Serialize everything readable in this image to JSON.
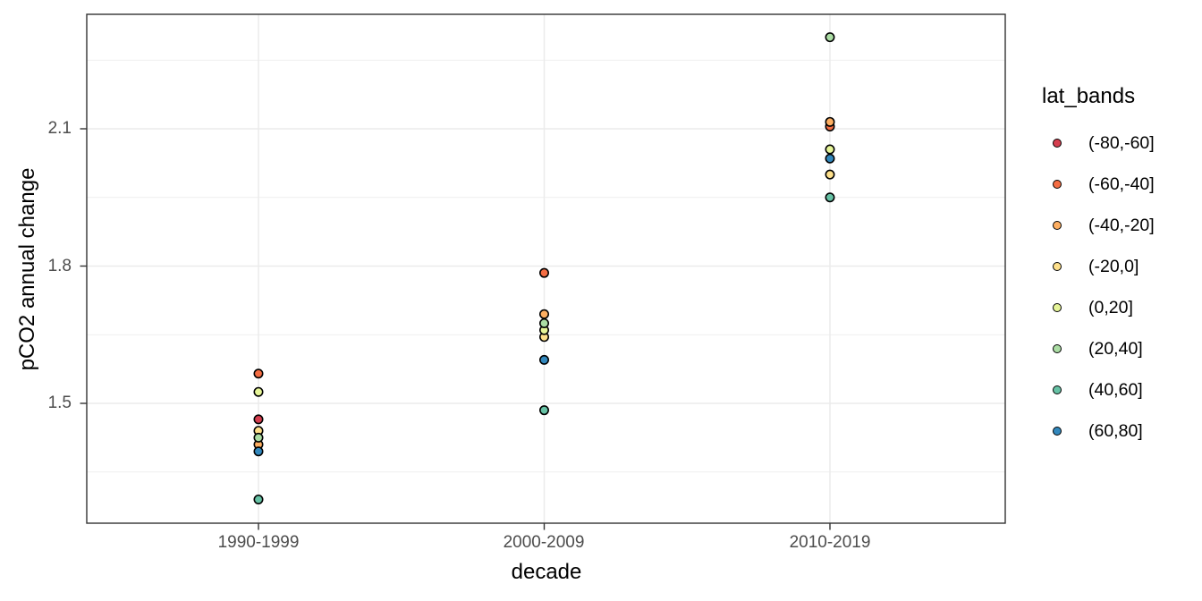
{
  "chart_data": {
    "type": "scatter",
    "title": "",
    "xlabel": "decade",
    "ylabel": "pCO2 annual change",
    "x_categories": [
      "1990-1999",
      "2000-2009",
      "2010-2019"
    ],
    "y_tick_labels": [
      "2.1",
      "1.8",
      "1.5"
    ],
    "y_major": [
      2.1,
      1.8,
      1.5
    ],
    "y_minor": [
      2.25,
      1.95,
      1.65,
      1.35
    ],
    "ylim": [
      1.236,
      2.35
    ],
    "grid": true,
    "grid_color": "#ebebeb",
    "panel_border_color": "#333333",
    "tick_label_color": "#4d4d4d",
    "point_stroke_color": "#000000",
    "legend_title": "lat_bands",
    "legend_position": "right",
    "series": [
      {
        "name": "(-80,-60]",
        "color": "#D53E4F",
        "values": [
          1.465,
          null,
          null
        ]
      },
      {
        "name": "(-60,-40]",
        "color": "#F46D43",
        "values": [
          1.565,
          1.785,
          2.105
        ]
      },
      {
        "name": "(-40,-20]",
        "color": "#FDAE61",
        "values": [
          1.41,
          1.695,
          2.115
        ]
      },
      {
        "name": "(-20,0]",
        "color": "#FEE08B",
        "values": [
          1.44,
          1.645,
          2.0
        ]
      },
      {
        "name": "(0,20]",
        "color": "#E6F598",
        "values": [
          1.525,
          1.66,
          2.055
        ]
      },
      {
        "name": "(20,40]",
        "color": "#ABDDA4",
        "values": [
          1.425,
          1.675,
          2.3
        ]
      },
      {
        "name": "(40,60]",
        "color": "#66C2A5",
        "values": [
          1.29,
          1.485,
          1.95
        ]
      },
      {
        "name": "(60,80]",
        "color": "#3288BD",
        "values": [
          1.395,
          1.595,
          2.035
        ]
      }
    ]
  }
}
